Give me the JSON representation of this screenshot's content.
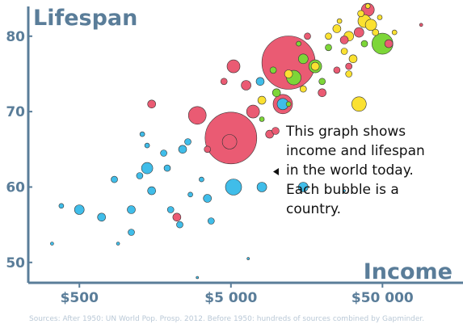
{
  "chart_data": {
    "type": "scatter",
    "title": "",
    "xlabel": "Income",
    "ylabel": "Lifespan",
    "x_scale": "log",
    "x_ticks": [
      {
        "value": 500,
        "label": "$500"
      },
      {
        "value": 5000,
        "label": "$5 000"
      },
      {
        "value": 50000,
        "label": "$50 000"
      }
    ],
    "y_ticks": [
      {
        "value": 50,
        "label": "50"
      },
      {
        "value": 60,
        "label": "60"
      },
      {
        "value": 70,
        "label": "70"
      },
      {
        "value": 80,
        "label": "80"
      }
    ],
    "xlim": [
      230,
      170000
    ],
    "ylim": [
      47.3,
      84.8
    ],
    "grid": false,
    "annotation": {
      "lines": [
        "This graph shows",
        "income and lifespan",
        "in the world today.",
        "Each bubble is a",
        "country."
      ]
    },
    "source": "Sources: After 1950: UN World Pop. Prosp. 2012. Before 1950: hundreds of sources combined by Gapminder.",
    "colors": {
      "asia": "#ea5b73",
      "africa": "#40bde9",
      "americas": "#7dd638",
      "europe": "#fbe131",
      "axis": "#5a7d99"
    },
    "series": [
      {
        "color": "asia",
        "points": [
          {
            "x": 5000,
            "y": 66.5,
            "r": 32
          },
          {
            "x": 12000,
            "y": 76.5,
            "r": 33
          },
          {
            "x": 4900,
            "y": 66,
            "r": 9
          },
          {
            "x": 3000,
            "y": 69.5,
            "r": 11
          },
          {
            "x": 11000,
            "y": 71,
            "r": 12
          },
          {
            "x": 7000,
            "y": 70,
            "r": 8
          },
          {
            "x": 5200,
            "y": 76,
            "r": 8
          },
          {
            "x": 6300,
            "y": 73.5,
            "r": 6
          },
          {
            "x": 40000,
            "y": 83.5,
            "r": 8
          },
          {
            "x": 35000,
            "y": 80.5,
            "r": 6
          },
          {
            "x": 55000,
            "y": 79,
            "r": 5
          },
          {
            "x": 20000,
            "y": 72.5,
            "r": 5
          },
          {
            "x": 25000,
            "y": 75.5,
            "r": 4
          },
          {
            "x": 28000,
            "y": 79.5,
            "r": 5
          },
          {
            "x": 1500,
            "y": 71,
            "r": 5
          },
          {
            "x": 2200,
            "y": 56,
            "r": 5
          },
          {
            "x": 3500,
            "y": 65,
            "r": 4
          },
          {
            "x": 4500,
            "y": 74,
            "r": 4
          },
          {
            "x": 9000,
            "y": 67,
            "r": 5
          },
          {
            "x": 16000,
            "y": 80,
            "r": 4
          },
          {
            "x": 30000,
            "y": 76,
            "r": 4
          },
          {
            "x": 90000,
            "y": 81.5,
            "r": 2
          }
        ]
      },
      {
        "color": "africa",
        "points": [
          {
            "x": 5200,
            "y": 60,
            "r": 10
          },
          {
            "x": 8000,
            "y": 60,
            "r": 6
          },
          {
            "x": 11000,
            "y": 71,
            "r": 7
          },
          {
            "x": 15000,
            "y": 60,
            "r": 6
          },
          {
            "x": 1400,
            "y": 62.5,
            "r": 7
          },
          {
            "x": 1250,
            "y": 61.5,
            "r": 4
          },
          {
            "x": 500,
            "y": 57,
            "r": 6
          },
          {
            "x": 700,
            "y": 56,
            "r": 5
          },
          {
            "x": 1100,
            "y": 57,
            "r": 5
          },
          {
            "x": 1500,
            "y": 59.5,
            "r": 5
          },
          {
            "x": 2000,
            "y": 57,
            "r": 4
          },
          {
            "x": 2300,
            "y": 55,
            "r": 4
          },
          {
            "x": 2400,
            "y": 65,
            "r": 5
          },
          {
            "x": 1900,
            "y": 62.5,
            "r": 4
          },
          {
            "x": 3500,
            "y": 58.5,
            "r": 5
          },
          {
            "x": 3700,
            "y": 55.5,
            "r": 4
          },
          {
            "x": 1800,
            "y": 64.5,
            "r": 4
          },
          {
            "x": 1400,
            "y": 65.5,
            "r": 3
          },
          {
            "x": 850,
            "y": 61,
            "r": 4
          },
          {
            "x": 380,
            "y": 57.5,
            "r": 3
          },
          {
            "x": 1100,
            "y": 54,
            "r": 4
          },
          {
            "x": 330,
            "y": 52.5,
            "r": 2
          },
          {
            "x": 900,
            "y": 52.5,
            "r": 2
          },
          {
            "x": 7800,
            "y": 74,
            "r": 5
          },
          {
            "x": 2600,
            "y": 66,
            "r": 4
          },
          {
            "x": 1300,
            "y": 67,
            "r": 3
          },
          {
            "x": 3200,
            "y": 61,
            "r": 3
          },
          {
            "x": 2700,
            "y": 59,
            "r": 3
          },
          {
            "x": 6500,
            "y": 50.5,
            "r": 1.5
          },
          {
            "x": 3000,
            "y": 48,
            "r": 1.5
          },
          {
            "x": 28000,
            "y": 59.5,
            "r": 1.5
          }
        ]
      },
      {
        "color": "americas",
        "points": [
          {
            "x": 50000,
            "y": 79,
            "r": 13
          },
          {
            "x": 13000,
            "y": 74.5,
            "r": 9
          },
          {
            "x": 18000,
            "y": 76,
            "r": 8
          },
          {
            "x": 10000,
            "y": 72.5,
            "r": 5
          },
          {
            "x": 15000,
            "y": 77,
            "r": 6
          },
          {
            "x": 20000,
            "y": 74,
            "r": 4
          },
          {
            "x": 8000,
            "y": 69,
            "r": 3
          },
          {
            "x": 9500,
            "y": 75.5,
            "r": 4
          },
          {
            "x": 22000,
            "y": 78.5,
            "r": 4
          },
          {
            "x": 14000,
            "y": 79,
            "r": 3
          },
          {
            "x": 38000,
            "y": 79,
            "r": 4
          },
          {
            "x": 12000,
            "y": 71,
            "r": 3
          }
        ]
      },
      {
        "color": "europe",
        "points": [
          {
            "x": 35000,
            "y": 71,
            "r": 9
          },
          {
            "x": 38000,
            "y": 82,
            "r": 8
          },
          {
            "x": 42000,
            "y": 81.5,
            "r": 7
          },
          {
            "x": 30000,
            "y": 80,
            "r": 6
          },
          {
            "x": 25000,
            "y": 81,
            "r": 5
          },
          {
            "x": 18000,
            "y": 76,
            "r": 5
          },
          {
            "x": 12000,
            "y": 75,
            "r": 5
          },
          {
            "x": 22000,
            "y": 80,
            "r": 4
          },
          {
            "x": 32000,
            "y": 77,
            "r": 5
          },
          {
            "x": 28000,
            "y": 78,
            "r": 4
          },
          {
            "x": 45000,
            "y": 80.5,
            "r": 4
          },
          {
            "x": 36000,
            "y": 83,
            "r": 4
          },
          {
            "x": 8000,
            "y": 71.5,
            "r": 5
          },
          {
            "x": 15000,
            "y": 73,
            "r": 4
          },
          {
            "x": 30000,
            "y": 75,
            "r": 4
          },
          {
            "x": 48000,
            "y": 82.5,
            "r": 3
          },
          {
            "x": 60000,
            "y": 80.5,
            "r": 3
          },
          {
            "x": 26000,
            "y": 82,
            "r": 3
          },
          {
            "x": 40000,
            "y": 84,
            "r": 3
          }
        ]
      }
    ]
  }
}
